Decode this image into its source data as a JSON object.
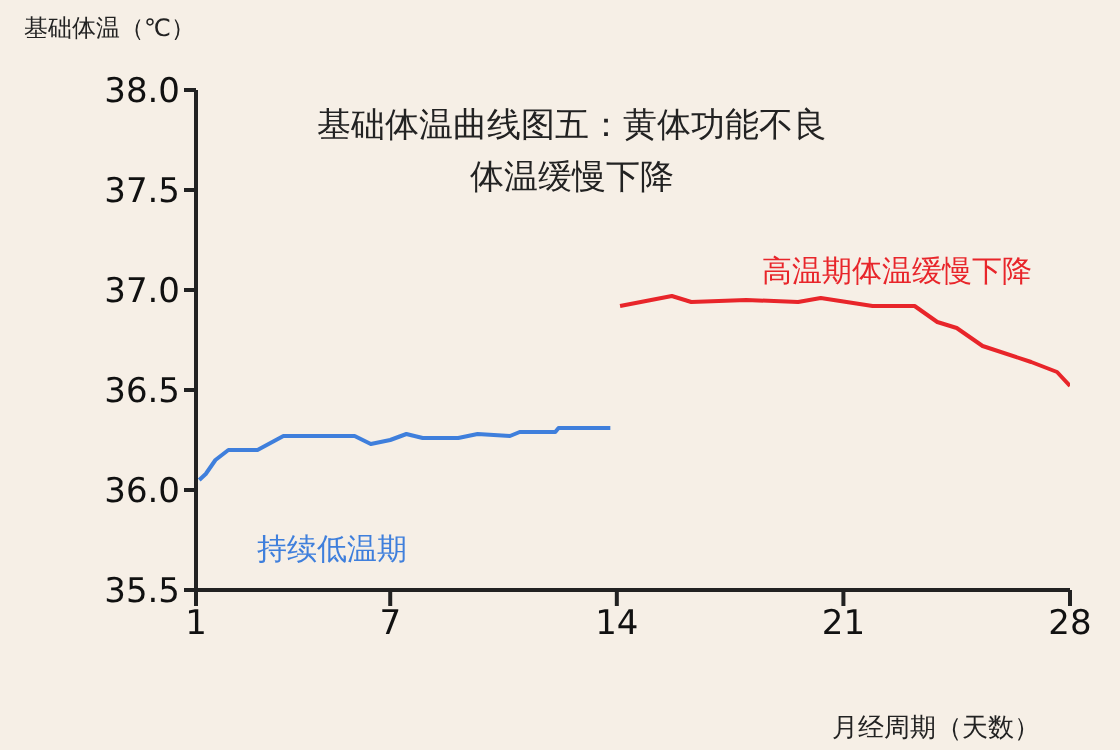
{
  "chart_data": {
    "type": "line",
    "title": "基础体温曲线图五：黄体功能不良体温缓慢下降",
    "ylabel": "基础体温（℃）",
    "xlabel": "月经周期（天数）",
    "xlim": [
      1,
      28
    ],
    "xticks": [
      1,
      7,
      14,
      21,
      28
    ],
    "ylim": [
      35.5,
      38.0
    ],
    "yticks": [
      35.5,
      {
        "value": 36,
        "label": "36.0"
      },
      36.5,
      {
        "value": 37,
        "label": "37.0"
      },
      37.5,
      {
        "value": 38,
        "label": "38.0"
      }
    ],
    "grid": false,
    "legend": false,
    "marker": "none",
    "line_style": "solid",
    "series": [
      {
        "name": "持续低温期",
        "color": "#3f7fdc",
        "x": [
          1.1,
          1.3,
          1.6,
          2.0,
          2.9,
          3.7,
          5.9,
          6.4,
          7.0,
          7.5,
          8.0,
          9.1,
          9.7,
          10.7,
          11.0,
          12.1,
          12.2,
          13.8
        ],
        "values": [
          36.05,
          36.08,
          36.15,
          36.2,
          36.2,
          36.27,
          36.27,
          36.23,
          36.25,
          36.28,
          36.26,
          36.26,
          36.28,
          36.27,
          36.29,
          36.29,
          36.31,
          36.31
        ]
      },
      {
        "name": "高温期体温缓慢下降",
        "color": "#e8252a",
        "x": [
          14.1,
          15.7,
          16.3,
          18.0,
          19.6,
          20.3,
          21.9,
          23.2,
          23.9,
          24.5,
          25.3,
          26.8,
          27.6,
          28.0
        ],
        "values": [
          36.92,
          36.97,
          36.94,
          36.95,
          36.94,
          36.96,
          36.92,
          36.92,
          36.84,
          36.81,
          36.72,
          36.64,
          36.59,
          36.52
        ]
      }
    ]
  }
}
